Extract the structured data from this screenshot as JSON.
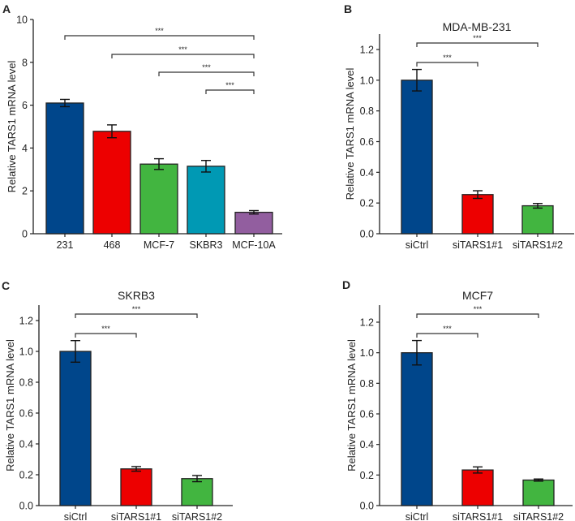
{
  "chart_data": [
    {
      "type": "bar",
      "panel_label": "A",
      "title": "",
      "ylabel": "Relative TARS1 mRNA level",
      "xlabel": "",
      "ylim": [
        0,
        10
      ],
      "yticks": [
        0,
        2,
        4,
        6,
        8,
        10
      ],
      "ytick_labels": [
        "0",
        "2",
        "4",
        "6",
        "8",
        "10"
      ],
      "categories": [
        "231",
        "468",
        "MCF-7",
        "SKBR3",
        "MCF-10A"
      ],
      "values": [
        6.1,
        4.78,
        3.25,
        3.15,
        1.0
      ],
      "errors": [
        0.17,
        0.3,
        0.25,
        0.27,
        0.08
      ],
      "colors": [
        "#00468b",
        "#ed0000",
        "#42b540",
        "#0099b4",
        "#925e9f"
      ],
      "significance": [
        {
          "from": "SKBR3",
          "to": "MCF-10A",
          "label": "***"
        },
        {
          "from": "MCF-7",
          "to": "MCF-10A",
          "label": "***"
        },
        {
          "from": "468",
          "to": "MCF-10A",
          "label": "***"
        },
        {
          "from": "231",
          "to": "MCF-10A",
          "label": "***"
        }
      ]
    },
    {
      "type": "bar",
      "panel_label": "B",
      "title": "MDA-MB-231",
      "ylabel": "Relative TARS1 mRNA level",
      "xlabel": "",
      "ylim": [
        0,
        1.3
      ],
      "yticks": [
        0,
        0.2,
        0.4,
        0.6,
        0.8,
        1.0,
        1.2
      ],
      "ytick_labels": [
        "0.0",
        "0.2",
        "0.4",
        "0.6",
        "0.8",
        "1.0",
        "1.2"
      ],
      "categories": [
        "siCtrl",
        "siTARS1#1",
        "siTARS1#2"
      ],
      "values": [
        1.0,
        0.255,
        0.182
      ],
      "errors": [
        0.07,
        0.025,
        0.015
      ],
      "colors": [
        "#00468b",
        "#ed0000",
        "#42b540"
      ],
      "significance": [
        {
          "from": "siCtrl",
          "to": "siTARS1#2",
          "label": "***"
        },
        {
          "from": "siCtrl",
          "to": "siTARS1#1",
          "label": "***"
        }
      ]
    },
    {
      "type": "bar",
      "panel_label": "C",
      "title": "SKRB3",
      "ylabel": "Relative TARS1 mRNA level",
      "xlabel": "",
      "ylim": [
        0,
        1.3
      ],
      "yticks": [
        0,
        0.2,
        0.4,
        0.6,
        0.8,
        1.0,
        1.2
      ],
      "ytick_labels": [
        "0.0",
        "0.2",
        "0.4",
        "0.6",
        "0.8",
        "1.0",
        "1.2"
      ],
      "categories": [
        "siCtrl",
        "siTARS1#1",
        "siTARS1#2"
      ],
      "values": [
        1.0,
        0.238,
        0.175
      ],
      "errors": [
        0.07,
        0.015,
        0.02
      ],
      "colors": [
        "#00468b",
        "#ed0000",
        "#42b540"
      ],
      "significance": [
        {
          "from": "siCtrl",
          "to": "siTARS1#2",
          "label": "***"
        },
        {
          "from": "siCtrl",
          "to": "siTARS1#1",
          "label": "***"
        }
      ]
    },
    {
      "type": "bar",
      "panel_label": "D",
      "title": "MCF7",
      "ylabel": "Relative TARS1 mRNA level",
      "xlabel": "",
      "ylim": [
        0,
        1.3
      ],
      "yticks": [
        0,
        0.2,
        0.4,
        0.6,
        0.8,
        1.0,
        1.2
      ],
      "ytick_labels": [
        "0.0",
        "0.2",
        "0.4",
        "0.6",
        "0.8",
        "1.0",
        "1.2"
      ],
      "categories": [
        "siCtrl",
        "siTARS1#1",
        "siTARS1#2"
      ],
      "values": [
        1.0,
        0.233,
        0.167
      ],
      "errors": [
        0.08,
        0.02,
        0.007
      ],
      "colors": [
        "#00468b",
        "#ed0000",
        "#42b540"
      ],
      "significance": [
        {
          "from": "siCtrl",
          "to": "siTARS1#2",
          "label": "***"
        },
        {
          "from": "siCtrl",
          "to": "siTARS1#1",
          "label": "***"
        }
      ]
    }
  ]
}
